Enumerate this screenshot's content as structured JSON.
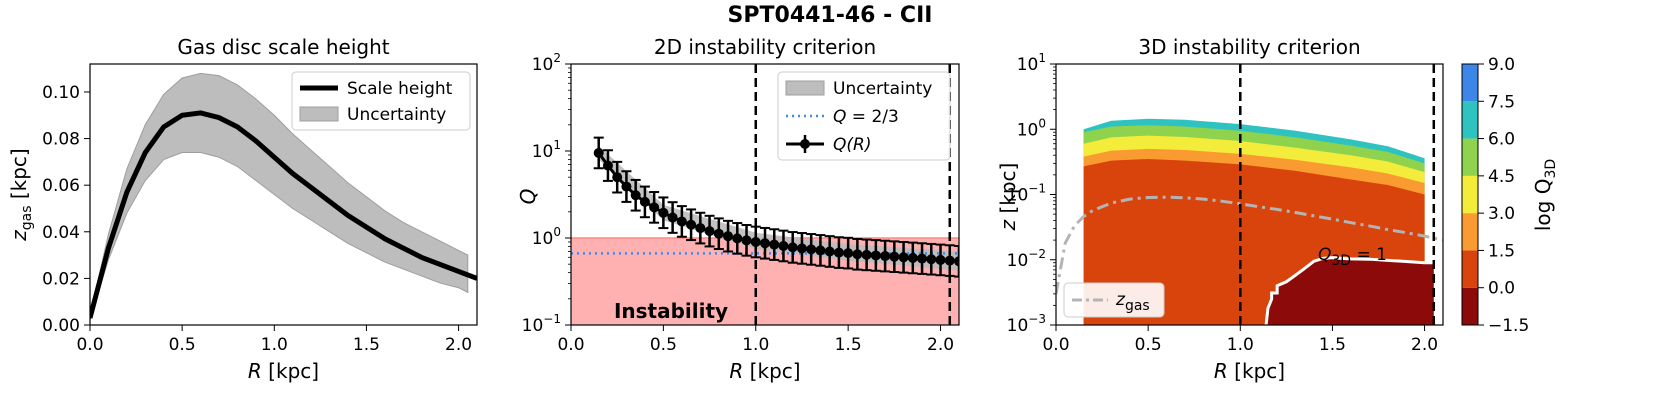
{
  "figure": {
    "suptitle": "SPT0441-46 - CII"
  },
  "chart_data": [
    {
      "type": "line",
      "title": "Gas disc scale height",
      "xlabel": "R [kpc]",
      "ylabel": "z_gas [kpc]",
      "xlim": [
        0.0,
        2.1
      ],
      "ylim": [
        0.0,
        0.112
      ],
      "xticks": [
        "0.0",
        "0.5",
        "1.0",
        "1.5",
        "2.0"
      ],
      "yticks": [
        "0.00",
        "0.02",
        "0.04",
        "0.06",
        "0.08",
        "0.10"
      ],
      "legend": {
        "position": "top-right",
        "entries": [
          "Scale height",
          "Uncertainty"
        ]
      },
      "series": [
        {
          "name": "Scale height",
          "x": [
            0.0,
            0.1,
            0.2,
            0.3,
            0.4,
            0.5,
            0.6,
            0.7,
            0.8,
            0.9,
            1.0,
            1.1,
            1.2,
            1.3,
            1.4,
            1.5,
            1.6,
            1.7,
            1.8,
            1.9,
            2.0,
            2.1
          ],
          "y": [
            0.003,
            0.033,
            0.057,
            0.074,
            0.085,
            0.09,
            0.091,
            0.089,
            0.085,
            0.079,
            0.072,
            0.065,
            0.059,
            0.053,
            0.047,
            0.042,
            0.037,
            0.033,
            0.029,
            0.026,
            0.023,
            0.02
          ]
        },
        {
          "name": "Uncertainty upper",
          "x": [
            0.0,
            0.1,
            0.2,
            0.3,
            0.4,
            0.5,
            0.6,
            0.7,
            0.8,
            0.9,
            1.0,
            1.1,
            1.2,
            1.3,
            1.4,
            1.5,
            1.6,
            1.7,
            1.8,
            1.9,
            2.0,
            2.05
          ],
          "y": [
            0.004,
            0.039,
            0.067,
            0.086,
            0.099,
            0.106,
            0.108,
            0.107,
            0.103,
            0.097,
            0.09,
            0.082,
            0.075,
            0.068,
            0.061,
            0.055,
            0.049,
            0.044,
            0.04,
            0.036,
            0.032,
            0.03
          ]
        },
        {
          "name": "Uncertainty lower",
          "x": [
            0.0,
            0.1,
            0.2,
            0.3,
            0.4,
            0.5,
            0.6,
            0.7,
            0.8,
            0.9,
            1.0,
            1.1,
            1.2,
            1.3,
            1.4,
            1.5,
            1.6,
            1.7,
            1.8,
            1.9,
            2.0,
            2.05
          ],
          "y": [
            0.002,
            0.028,
            0.048,
            0.062,
            0.071,
            0.074,
            0.074,
            0.072,
            0.068,
            0.062,
            0.056,
            0.05,
            0.045,
            0.04,
            0.035,
            0.031,
            0.027,
            0.024,
            0.021,
            0.018,
            0.016,
            0.014
          ]
        }
      ]
    },
    {
      "type": "line",
      "title": "2D instability criterion",
      "xlabel": "R [kpc]",
      "ylabel": "Q",
      "yscale": "log",
      "xlim": [
        0.0,
        2.1
      ],
      "ylim": [
        0.1,
        100
      ],
      "xticks": [
        "0.0",
        "0.5",
        "1.0",
        "1.5",
        "2.0"
      ],
      "yticks": [
        "10^-1",
        "10^0",
        "10^1",
        "10^2"
      ],
      "legend": {
        "position": "top-right",
        "entries": [
          "Uncertainty",
          "Q = 2/3",
          "Q(R)"
        ]
      },
      "annotation": "Instability",
      "instability_region": [
        0.1,
        1.0
      ],
      "q_threshold": 0.6667,
      "vlines": [
        1.0,
        2.05
      ],
      "series": [
        {
          "name": "Q(R)",
          "x": [
            0.15,
            0.2,
            0.25,
            0.3,
            0.35,
            0.4,
            0.45,
            0.5,
            0.55,
            0.6,
            0.65,
            0.7,
            0.75,
            0.8,
            0.85,
            0.9,
            0.95,
            1.0,
            1.05,
            1.1,
            1.15,
            1.2,
            1.25,
            1.3,
            1.35,
            1.4,
            1.45,
            1.5,
            1.55,
            1.6,
            1.65,
            1.7,
            1.75,
            1.8,
            1.85,
            1.9,
            1.95,
            2.0,
            2.05,
            2.1
          ],
          "y": [
            9.5,
            6.8,
            5.0,
            3.9,
            3.1,
            2.6,
            2.25,
            1.95,
            1.72,
            1.55,
            1.42,
            1.3,
            1.2,
            1.12,
            1.05,
            0.99,
            0.94,
            0.9,
            0.87,
            0.84,
            0.81,
            0.78,
            0.76,
            0.74,
            0.72,
            0.7,
            0.68,
            0.67,
            0.65,
            0.64,
            0.63,
            0.62,
            0.61,
            0.6,
            0.59,
            0.58,
            0.57,
            0.56,
            0.55,
            0.54
          ],
          "err_factor": 1.5
        },
        {
          "name": "Uncertainty upper",
          "x": [
            0.15,
            0.5,
            1.0,
            1.5,
            2.1
          ],
          "y": [
            11.5,
            2.4,
            1.15,
            0.85,
            0.7
          ]
        },
        {
          "name": "Uncertainty lower",
          "x": [
            0.15,
            0.5,
            1.0,
            1.5,
            2.1
          ],
          "y": [
            8.0,
            1.6,
            0.75,
            0.55,
            0.42
          ]
        }
      ]
    },
    {
      "type": "heatmap",
      "title": "3D instability criterion",
      "xlabel": "R [kpc]",
      "ylabel": "z [kpc]",
      "yscale": "log",
      "xlim": [
        0.0,
        2.1
      ],
      "ylim": [
        0.001,
        10
      ],
      "xticks": [
        "0.0",
        "0.5",
        "1.0",
        "1.5",
        "2.0"
      ],
      "yticks": [
        "10^-3",
        "10^-2",
        "10^-1",
        "10^0",
        "10^1"
      ],
      "colorbar": {
        "label": "log Q_3D",
        "ticks": [
          "9.0",
          "7.5",
          "6.0",
          "4.5",
          "3.0",
          "1.5",
          "0.0",
          "−1.5"
        ],
        "levels": [
          -1.5,
          0.0,
          1.5,
          3.0,
          4.5,
          6.0,
          7.5,
          9.0
        ],
        "colors": [
          "#8c0a0a",
          "#d9440c",
          "#f99b30",
          "#f3ec3a",
          "#8ed24e",
          "#2ec2c0",
          "#3c86e8"
        ]
      },
      "contour_label": "Q_3D = 1",
      "legend": {
        "position": "bottom-left",
        "entries": [
          "z_gas"
        ]
      },
      "vlines": [
        1.0,
        2.05
      ],
      "band_x": [
        0.15,
        0.3,
        0.5,
        0.7,
        1.0,
        1.3,
        1.6,
        1.8,
        2.0
      ],
      "boundaries": {
        "top": [
          1.0,
          1.35,
          1.45,
          1.4,
          1.2,
          0.95,
          0.7,
          0.55,
          0.36
        ],
        "b6_0": [
          0.9,
          1.1,
          1.15,
          1.1,
          0.95,
          0.75,
          0.56,
          0.45,
          0.3
        ],
        "b4_5": [
          0.6,
          0.75,
          0.8,
          0.76,
          0.66,
          0.52,
          0.4,
          0.32,
          0.22
        ],
        "b3_0": [
          0.38,
          0.47,
          0.5,
          0.48,
          0.42,
          0.34,
          0.26,
          0.21,
          0.15
        ],
        "b1_5": [
          0.27,
          0.33,
          0.35,
          0.33,
          0.29,
          0.23,
          0.17,
          0.14,
          0.1
        ]
      },
      "q_unity_contour": {
        "x": [
          1.14,
          1.15,
          1.17,
          1.17,
          1.2,
          1.2,
          1.25,
          1.3,
          1.35,
          1.4,
          1.45,
          1.5,
          1.55,
          1.6,
          1.7,
          1.8,
          1.9,
          2.0,
          2.05
        ],
        "y": [
          0.001,
          0.0018,
          0.0025,
          0.0031,
          0.0031,
          0.004,
          0.0046,
          0.0058,
          0.0074,
          0.0095,
          0.0105,
          0.0108,
          0.0105,
          0.0103,
          0.0102,
          0.0098,
          0.0094,
          0.009,
          0.009
        ]
      },
      "series": [
        {
          "name": "z_gas",
          "x": [
            0.0,
            0.05,
            0.1,
            0.15,
            0.2,
            0.3,
            0.4,
            0.5,
            0.6,
            0.7,
            0.8,
            0.9,
            1.0,
            1.1,
            1.2,
            1.3,
            1.4,
            1.5,
            1.6,
            1.7,
            1.8,
            1.9,
            2.0,
            2.1
          ],
          "y": [
            0.003,
            0.018,
            0.033,
            0.046,
            0.057,
            0.074,
            0.085,
            0.09,
            0.091,
            0.089,
            0.085,
            0.079,
            0.072,
            0.065,
            0.059,
            0.053,
            0.047,
            0.042,
            0.037,
            0.033,
            0.029,
            0.026,
            0.023,
            0.02
          ]
        }
      ]
    }
  ]
}
